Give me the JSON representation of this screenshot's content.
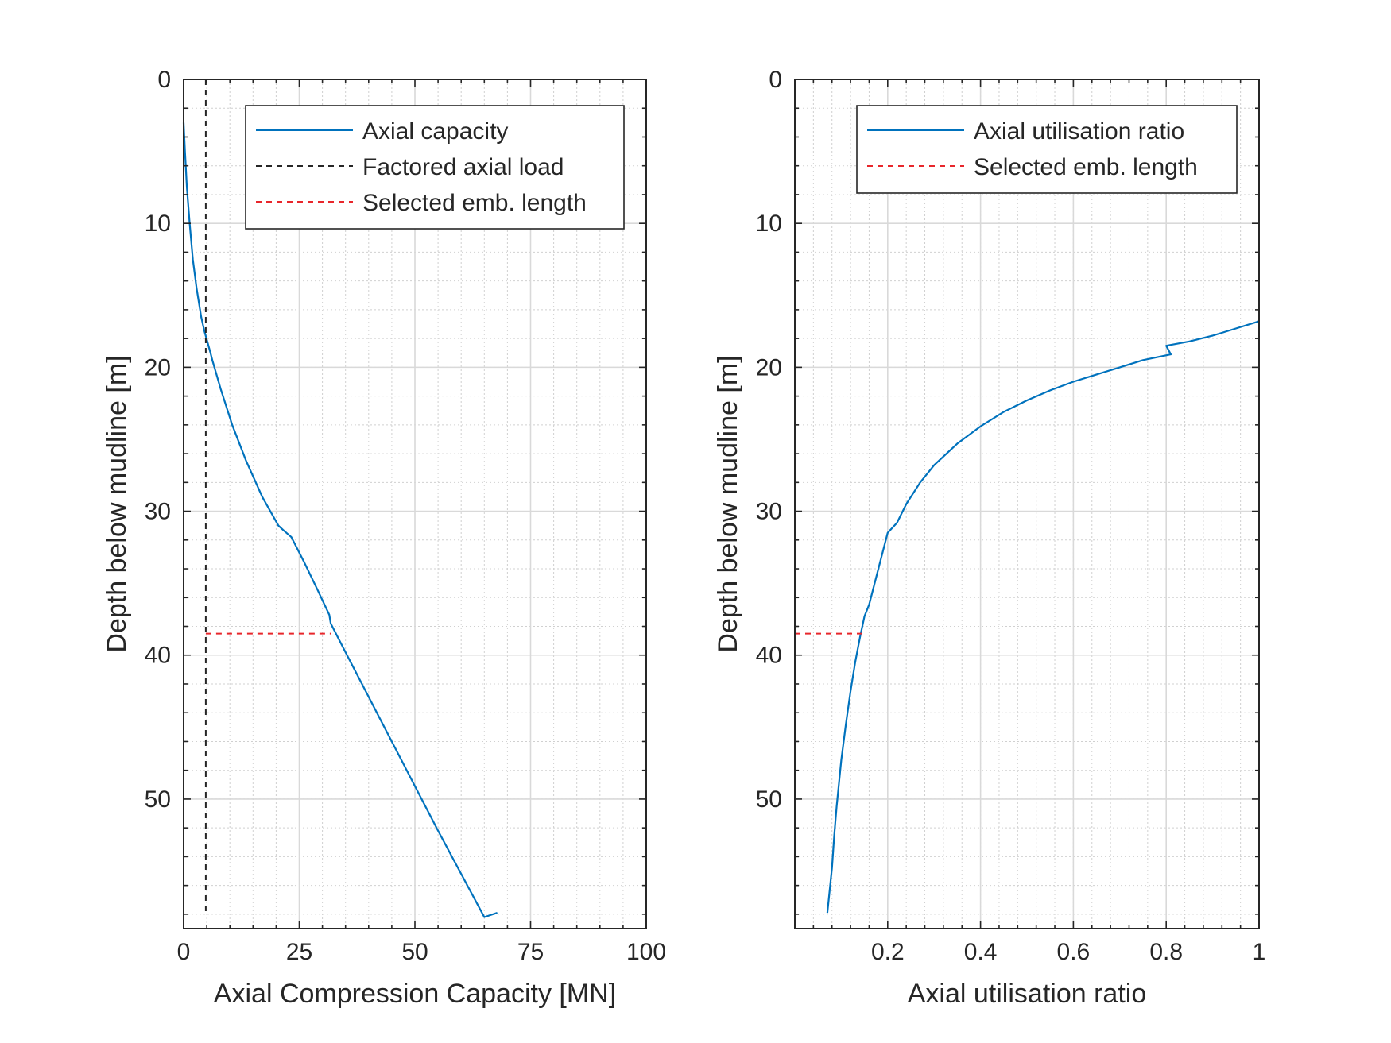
{
  "colors": {
    "capacity": "#0072BD",
    "load": "#262626",
    "selected": "#E8262B",
    "axis": "#262626",
    "grid": "#D9D9D9"
  },
  "chart_data": [
    {
      "type": "line",
      "xlabel": "Axial Compression Capacity [MN]",
      "ylabel": "Depth below mudline [m]",
      "xlim": [
        0,
        100
      ],
      "ylim": [
        0,
        59
      ],
      "y_reversed": true,
      "grid": true,
      "minor_grid": true,
      "xticks": [
        0,
        25,
        50,
        75,
        100
      ],
      "xticklabels": [
        "0",
        "25",
        "50",
        "75",
        "100"
      ],
      "yticks": [
        0,
        10,
        20,
        30,
        40,
        50
      ],
      "yticklabels": [
        "0",
        "10",
        "20",
        "30",
        "40",
        "50"
      ],
      "legend_position": "top-right",
      "series": [
        {
          "name": "Axial capacity",
          "style": "solid",
          "x": [
            0.0,
            0.3,
            0.7,
            1.3,
            2.0,
            2.8,
            3.8,
            4.5,
            5.8,
            6.2,
            8.0,
            10.5,
            13.5,
            17.0,
            20.5,
            21.5,
            23.3,
            26.0,
            29.0,
            31.5,
            31.8,
            35.0,
            40.0,
            45.0,
            50.0,
            55.0,
            60.0,
            65.0,
            67.8
          ],
          "y": [
            3.0,
            5.0,
            7.5,
            10.0,
            12.5,
            14.5,
            16.5,
            17.5,
            19.0,
            19.5,
            21.5,
            24.0,
            26.5,
            29.0,
            31.0,
            31.3,
            31.8,
            33.5,
            35.5,
            37.2,
            37.8,
            39.8,
            42.9,
            46.0,
            49.1,
            52.2,
            55.2,
            58.2,
            57.9
          ]
        },
        {
          "name": "Factored axial load",
          "style": "dashed",
          "x": [
            4.8,
            4.8
          ],
          "y": [
            0,
            58
          ]
        },
        {
          "name": "Selected emb. length",
          "style": "dashed",
          "x": [
            4.8,
            31.8
          ],
          "y": [
            38.5,
            38.5
          ]
        }
      ]
    },
    {
      "type": "line",
      "xlabel": "Axial utilisation ratio",
      "ylabel": "Depth below mudline [m]",
      "xlim": [
        0,
        1
      ],
      "ylim": [
        0,
        59
      ],
      "y_reversed": true,
      "grid": true,
      "minor_grid": true,
      "xticks": [
        0.2,
        0.4,
        0.6,
        0.8,
        1
      ],
      "xticklabels": [
        "0.2",
        "0.4",
        "0.6",
        "0.8",
        "1"
      ],
      "yticks": [
        0,
        10,
        20,
        30,
        40,
        50
      ],
      "yticklabels": [
        "0",
        "10",
        "20",
        "30",
        "40",
        "50"
      ],
      "legend_position": "top-right",
      "series": [
        {
          "name": "Axial utilisation ratio",
          "style": "solid",
          "x": [
            1.0,
            0.95,
            0.9,
            0.85,
            0.8,
            0.81,
            0.75,
            0.7,
            0.65,
            0.6,
            0.55,
            0.5,
            0.45,
            0.4,
            0.35,
            0.3,
            0.27,
            0.24,
            0.22,
            0.2,
            0.18,
            0.16,
            0.15,
            0.14,
            0.13,
            0.12,
            0.11,
            0.1,
            0.09,
            0.085,
            0.08,
            0.07
          ],
          "y": [
            16.8,
            17.3,
            17.8,
            18.2,
            18.5,
            19.1,
            19.5,
            20.0,
            20.5,
            21.0,
            21.6,
            22.3,
            23.1,
            24.1,
            25.3,
            26.8,
            28.0,
            29.5,
            30.8,
            31.5,
            34.0,
            36.5,
            37.3,
            38.8,
            40.5,
            42.5,
            44.8,
            47.3,
            50.5,
            52.5,
            54.8,
            57.9
          ]
        },
        {
          "name": "Selected emb. length",
          "style": "dashed",
          "x": [
            0.0,
            0.145
          ],
          "y": [
            38.5,
            38.5
          ]
        }
      ]
    }
  ]
}
